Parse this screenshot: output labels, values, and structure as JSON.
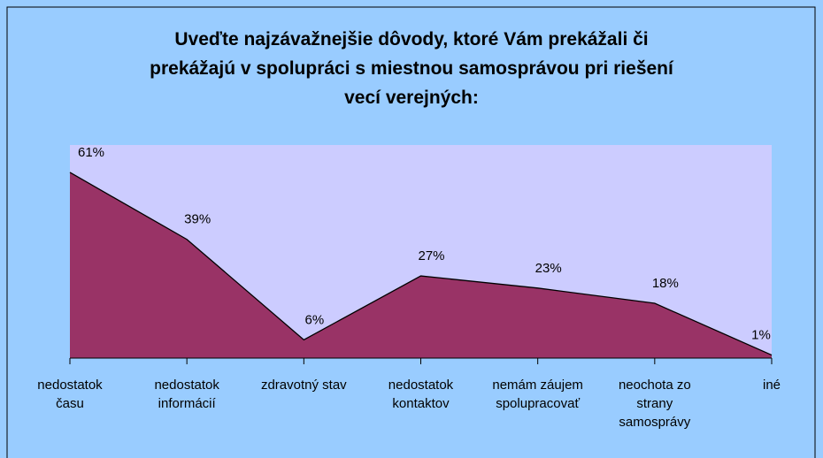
{
  "chart_data": {
    "type": "area",
    "title": "Uveďte najzávažnejšie dôvody, ktoré Vám prekážali či\nprekážajú v spolupráci s miestnou samosprávou pri riešení\nvecí verejných:",
    "categories": [
      "nedostatok\nčasu",
      "nedostatok\ninformácií",
      "zdravotný stav",
      "nedostatok\nkontaktov",
      "nemám záujem\nspolupracovať",
      "neochota zo\nstrany\nsamosprávy",
      "iné"
    ],
    "values": [
      61,
      39,
      6,
      27,
      23,
      18,
      1
    ],
    "value_labels": [
      "61%",
      "39%",
      "6%",
      "27%",
      "23%",
      "18%",
      "1%"
    ],
    "color": "#993366",
    "ylim": [
      0,
      70
    ]
  }
}
